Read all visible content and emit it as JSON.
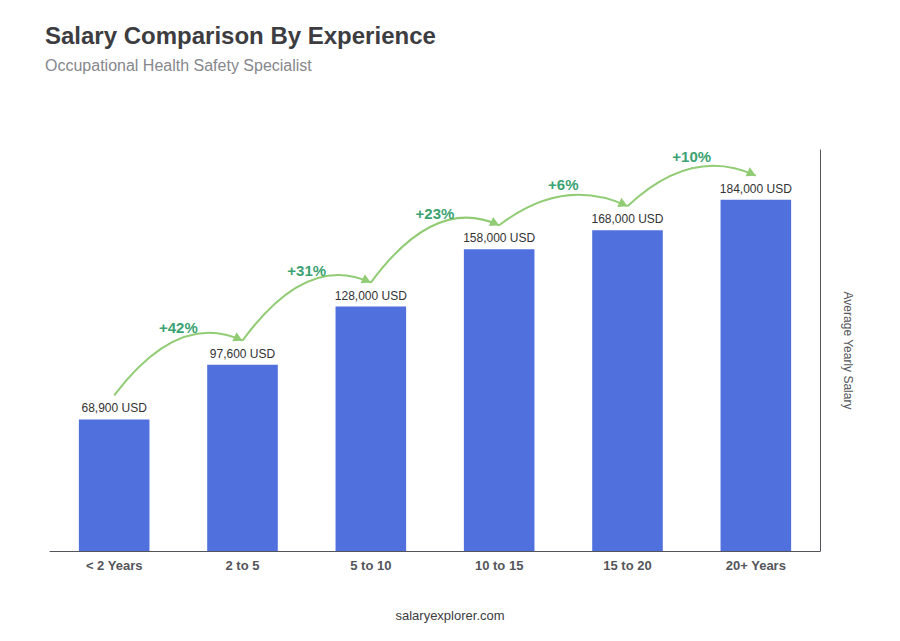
{
  "chart_data": {
    "type": "bar",
    "title": "Salary Comparison By Experience",
    "subtitle": "Occupational Health Safety Specialist",
    "categories": [
      "< 2 Years",
      "2 to 5",
      "5 to 10",
      "10 to 15",
      "15 to 20",
      "20+ Years"
    ],
    "values": [
      68900,
      97600,
      128000,
      158000,
      168000,
      184000
    ],
    "value_labels": [
      "68,900 USD",
      "97,600 USD",
      "128,000 USD",
      "158,000 USD",
      "168,000 USD",
      "184,000 USD"
    ],
    "data_labels": true,
    "annotations": [
      "+42%",
      "+31%",
      "+23%",
      "+6%",
      "+10%"
    ],
    "ylabel": "Average Yearly Salary",
    "footer": "salaryexplorer.com",
    "ylim": [
      0,
      210000
    ],
    "tick_labels": "x",
    "grid": false
  }
}
